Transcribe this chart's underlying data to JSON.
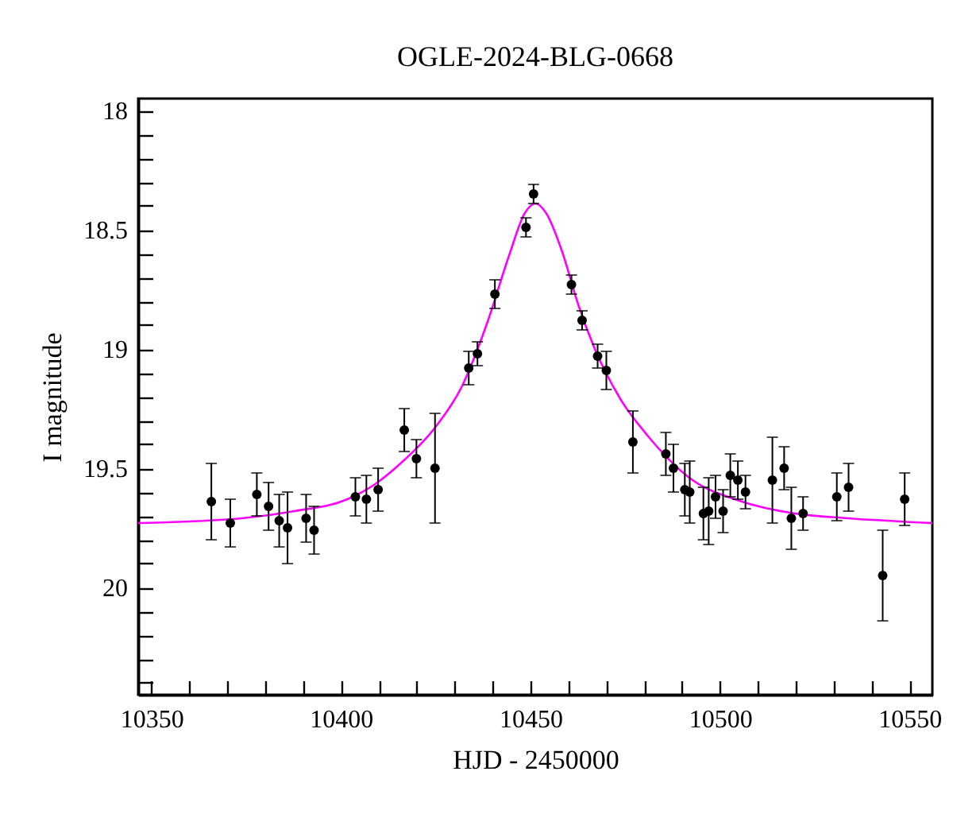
{
  "chart_data": {
    "type": "scatter",
    "title": "OGLE-2024-BLG-0668",
    "xlabel": "HJD - 2450000",
    "ylabel": "I magnitude",
    "xlim": [
      10346.5,
      10556
    ],
    "ylim": [
      20.45,
      17.95
    ],
    "xticks": [
      10350,
      {
        "value": 10360,
        "label": null
      },
      {
        "value": 10370,
        "label": null
      },
      {
        "value": 10380,
        "label": null
      },
      {
        "value": 10390,
        "label": null
      },
      10400,
      {
        "value": 10410,
        "label": null
      },
      {
        "value": 10420,
        "label": null
      },
      {
        "value": 10430,
        "label": null
      },
      {
        "value": 10440,
        "label": null
      },
      10450,
      {
        "value": 10460,
        "label": null
      },
      {
        "value": 10470,
        "label": null
      },
      {
        "value": 10480,
        "label": null
      },
      {
        "value": 10490,
        "label": null
      },
      10500,
      {
        "value": 10510,
        "label": null
      },
      {
        "value": 10520,
        "label": null
      },
      {
        "value": 10530,
        "label": null
      },
      {
        "value": 10540,
        "label": null
      },
      10550
    ],
    "yticks": [
      18,
      {
        "value": 18.1,
        "label": null
      },
      {
        "value": 18.2,
        "label": null
      },
      {
        "value": 18.3,
        "label": null
      },
      {
        "value": 18.4,
        "label": null
      },
      18.5,
      {
        "value": 18.6,
        "label": null
      },
      {
        "value": 18.7,
        "label": null
      },
      {
        "value": 18.8,
        "label": null
      },
      {
        "value": 18.9,
        "label": null
      },
      19,
      {
        "value": 19.1,
        "label": null
      },
      {
        "value": 19.2,
        "label": null
      },
      {
        "value": 19.3,
        "label": null
      },
      {
        "value": 19.4,
        "label": null
      },
      19.5,
      {
        "value": 19.6,
        "label": null
      },
      {
        "value": 19.7,
        "label": null
      },
      {
        "value": 19.8,
        "label": null
      },
      {
        "value": 19.9,
        "label": null
      },
      20,
      {
        "value": 20.1,
        "label": null
      },
      {
        "value": 20.2,
        "label": null
      },
      {
        "value": 20.3,
        "label": null
      },
      {
        "value": 20.4,
        "label": null
      }
    ],
    "grid": false,
    "series": [
      {
        "type": "line",
        "color": "#ff00ff",
        "marker": "none",
        "line_style": "solid",
        "x": [
          10346.5,
          10373.8,
          10387.7,
          10401.7,
          10408.7,
          10415.7,
          10424.8,
          10431.8,
          10438.8,
          10444.3,
          10448.5,
          10451.3,
          10454.1,
          10458.3,
          10462.5,
          10466.7,
          10473.7,
          10480.7,
          10491.9,
          10505.8,
          10519.8,
          10533.8,
          10556
        ],
        "values": [
          19.73,
          19.71,
          19.68,
          19.63,
          19.57,
          19.48,
          19.33,
          19.16,
          18.88,
          18.61,
          18.43,
          18.39,
          18.43,
          18.59,
          18.81,
          18.99,
          19.21,
          19.36,
          19.54,
          19.64,
          19.69,
          19.71,
          19.73
        ]
      },
      {
        "color": "#000000",
        "marker": "circle",
        "x": [
          10365.8,
          10370.8,
          10377.8,
          10380.9,
          10383.7,
          10385.9,
          10390.8,
          10392.9,
          10403.8,
          10406.7,
          10409.8,
          10416.7,
          10419.9,
          10424.8,
          10433.7,
          10436.0,
          10440.6,
          10448.8,
          10450.8,
          10460.8,
          10463.6,
          10467.7,
          10470.0,
          10477.0,
          10485.7,
          10487.7,
          10490.7,
          10492.0,
          10495.6,
          10497.0,
          10498.8,
          10500.8,
          10502.7,
          10504.7,
          10506.7,
          10513.8,
          10516.9,
          10518.8,
          10521.9,
          10530.8,
          10533.9,
          10542.9,
          10548.7
        ],
        "values": [
          19.64,
          19.73,
          19.61,
          19.66,
          19.72,
          19.75,
          19.71,
          19.76,
          19.62,
          19.63,
          19.59,
          19.34,
          19.46,
          19.5,
          19.08,
          19.02,
          18.77,
          18.49,
          18.35,
          18.73,
          18.88,
          19.03,
          19.09,
          19.39,
          19.44,
          19.5,
          19.59,
          19.6,
          19.69,
          19.68,
          19.62,
          19.68,
          19.53,
          19.55,
          19.6,
          19.55,
          19.5,
          19.71,
          19.69,
          19.62,
          19.58,
          19.95,
          19.63
        ],
        "errors": [
          0.16,
          0.1,
          0.09,
          0.1,
          0.11,
          0.15,
          0.1,
          0.1,
          0.08,
          0.1,
          0.09,
          0.09,
          0.08,
          0.23,
          0.07,
          0.05,
          0.06,
          0.04,
          0.04,
          0.04,
          0.04,
          0.05,
          0.08,
          0.13,
          0.09,
          0.1,
          0.11,
          0.13,
          0.11,
          0.14,
          0.09,
          0.09,
          0.09,
          0.08,
          0.07,
          0.18,
          0.09,
          0.13,
          0.07,
          0.1,
          0.1,
          0.19,
          0.11
        ]
      }
    ]
  }
}
